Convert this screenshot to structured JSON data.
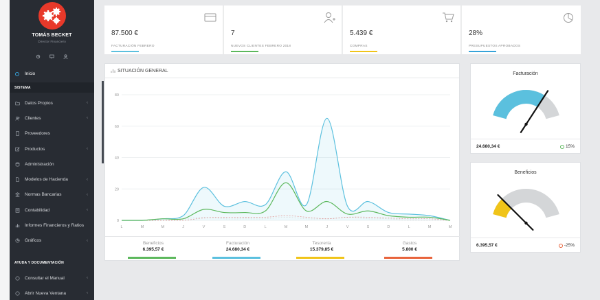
{
  "profile": {
    "name": "TOMÁS BECKET",
    "role": "Director Financiero"
  },
  "nav": {
    "home": "Inicio",
    "section_system": "SISTEMA",
    "items": [
      {
        "label": "Datos Propios",
        "chev": "‹"
      },
      {
        "label": "Clientes",
        "chev": "‹"
      },
      {
        "label": "Proveedores",
        "chev": ""
      },
      {
        "label": "Productos",
        "chev": "‹"
      },
      {
        "label": "Administración",
        "chev": ""
      },
      {
        "label": "Modelos de Hacienda",
        "chev": "‹"
      },
      {
        "label": "Normas Bancarias",
        "chev": "‹"
      },
      {
        "label": "Contabilidad",
        "chev": "‹"
      },
      {
        "label": "Informes Financieros y Ratios",
        "chev": ""
      },
      {
        "label": "Gráficos",
        "chev": "‹"
      }
    ],
    "section_help": "AYUDA Y DOCUMENTACIÓN",
    "help_items": [
      {
        "label": "Consultar el Manual",
        "chev": "‹"
      },
      {
        "label": "Abrir Nueva Ventana",
        "chev": "‹"
      }
    ]
  },
  "stats": [
    {
      "value": "87.500 €",
      "label": "FACTURACIÓN FEBRERO",
      "color": "#5bc0de",
      "icon": "credit-card-icon"
    },
    {
      "value": "7",
      "label": "NUEVOS CLIENTES FEBRERO 2018",
      "color": "#5cb85c",
      "icon": "add-user-icon"
    },
    {
      "value": "5.439 €",
      "label": "COMPRAS",
      "color": "#f0c419",
      "icon": "shopping-cart-icon"
    },
    {
      "value": "28%",
      "label": "PRESUPUESTOS APROBADOS",
      "color": "#36a3d9",
      "icon": "pie-chart-icon"
    }
  ],
  "chart_panel": {
    "title": "SITUACIÓN GENERAL"
  },
  "chart_data": {
    "type": "area",
    "title": "SITUACIÓN GENERAL",
    "xlabel": "",
    "ylabel": "",
    "ylim": [
      0,
      80
    ],
    "yticks": [
      "80",
      "60",
      "40",
      "20",
      "0"
    ],
    "categories": [
      "L",
      "M",
      "M",
      "J",
      "V",
      "S",
      "D",
      "L",
      "M",
      "M",
      "J",
      "V",
      "S",
      "D",
      "L",
      "M",
      "M"
    ],
    "series": [
      {
        "name": "Facturación",
        "color": "#5bc0de",
        "values": [
          0,
          0,
          1,
          3,
          21,
          9,
          12,
          10,
          31,
          10,
          65,
          9,
          12,
          5,
          4,
          3,
          0
        ]
      },
      {
        "name": "Beneficios",
        "color": "#5cb85c",
        "values": [
          0,
          0,
          1,
          1,
          7,
          5,
          5,
          6,
          24,
          6,
          12,
          4,
          6,
          3,
          2,
          2,
          0
        ]
      },
      {
        "name": "Gastos",
        "color": "#d9534f",
        "values": [
          0,
          0,
          0,
          0,
          1.5,
          2,
          2,
          2,
          3,
          2,
          1,
          2,
          2,
          1.5,
          1,
          1,
          0
        ]
      },
      {
        "name": "Tesorería",
        "color": "#cccccc",
        "values": [
          0,
          0,
          0,
          1,
          2,
          1,
          1,
          1,
          2,
          1,
          1,
          2,
          1,
          1,
          0,
          0,
          0
        ]
      }
    ]
  },
  "legend": [
    {
      "name": "Beneficios",
      "value": "6.395,57 €",
      "color": "#5cb85c"
    },
    {
      "name": "Facturación",
      "value": "24.680,34 €",
      "color": "#5bc0de"
    },
    {
      "name": "Tesorería",
      "value": "15.379,85 €",
      "color": "#f0c419"
    },
    {
      "name": "Gastos",
      "value": "5.800 €",
      "color": "#e8643c"
    }
  ],
  "gauges": [
    {
      "title": "Facturación",
      "value": "24.680,34 €",
      "percent": "15%",
      "percent_color": "#5cb85c",
      "fill_color": "#5bc0de",
      "level": 0.72
    },
    {
      "title": "Beneficios",
      "value": "6.395,57 €",
      "percent": "-25%",
      "percent_color": "#e8643c",
      "fill_color": "#f0c419",
      "level": 0.2
    }
  ]
}
